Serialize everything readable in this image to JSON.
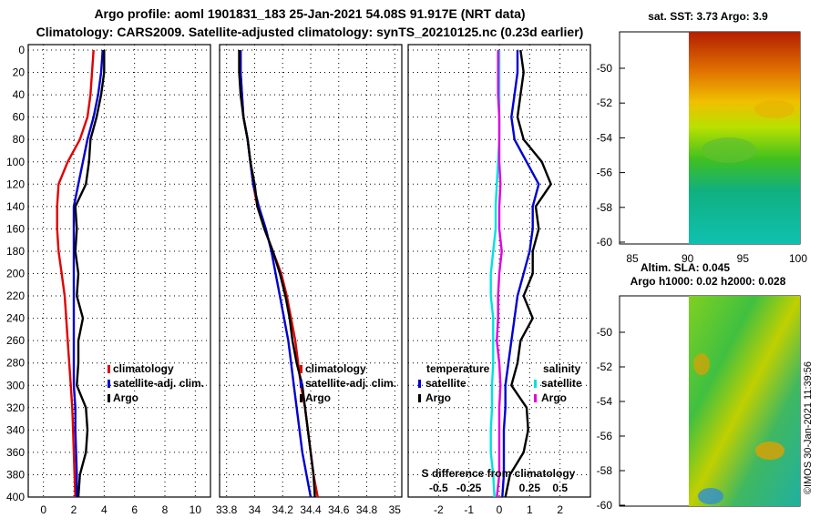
{
  "title": {
    "line1": "Argo profile: aoml 1901831_183 25-Jan-2021 54.08S 91.917E (NRT data)",
    "line2": "Climatology: CARS2009. Satellite-adjusted climatology: synTS_20210125.nc (0.23d earlier)"
  },
  "colors": {
    "climatology": "#e00000",
    "satellite": "#0000d0",
    "argo": "#000000",
    "sat_salinity": "#00e0e0",
    "argo_salinity": "#e000e0"
  },
  "depth_axis": {
    "ticks": [
      "0",
      "20",
      "40",
      "60",
      "80",
      "100",
      "120",
      "140",
      "160",
      "180",
      "200",
      "220",
      "240",
      "260",
      "280",
      "300",
      "320",
      "340",
      "360",
      "380",
      "400"
    ],
    "range": [
      0,
      400
    ]
  },
  "chart_data": [
    {
      "type": "line",
      "name": "temperature",
      "xlim": [
        -1,
        11
      ],
      "xticks": [
        "0",
        "2",
        "4",
        "6",
        "8",
        "10"
      ],
      "ylim": [
        0,
        400
      ],
      "legend": {
        "climatology": "climatology",
        "satellite": "satellite-adj. clim.",
        "argo": "Argo"
      },
      "series": [
        {
          "name": "climatology",
          "depth": [
            0,
            20,
            40,
            60,
            80,
            100,
            120,
            140,
            160,
            180,
            200,
            220,
            240,
            260,
            280,
            300,
            320,
            340,
            360,
            380,
            400
          ],
          "values": [
            3.3,
            3.2,
            3.1,
            2.9,
            2.4,
            1.6,
            1.0,
            0.9,
            0.9,
            1.0,
            1.2,
            1.4,
            1.5,
            1.6,
            1.7,
            1.8,
            1.9,
            1.95,
            2.0,
            2.05,
            2.1
          ]
        },
        {
          "name": "satellite",
          "depth": [
            0,
            20,
            40,
            60,
            80,
            100,
            120,
            140,
            160,
            180,
            200,
            220,
            240,
            260,
            280,
            300,
            320,
            340,
            360,
            380,
            400
          ],
          "values": [
            3.9,
            3.8,
            3.6,
            3.3,
            2.9,
            2.6,
            2.3,
            2.0,
            2.0,
            2.0,
            2.0,
            2.0,
            2.0,
            2.0,
            2.0,
            2.0,
            2.1,
            2.1,
            2.15,
            2.2,
            2.2
          ]
        },
        {
          "name": "argo",
          "depth": [
            0,
            20,
            40,
            60,
            80,
            100,
            120,
            140,
            160,
            180,
            200,
            220,
            240,
            260,
            280,
            300,
            320,
            340,
            360,
            380,
            400
          ],
          "values": [
            4.0,
            4.0,
            3.8,
            3.5,
            3.1,
            3.0,
            2.8,
            2.1,
            2.2,
            2.1,
            2.3,
            2.2,
            2.6,
            2.3,
            2.3,
            2.2,
            2.8,
            2.9,
            2.8,
            2.4,
            2.3
          ]
        }
      ]
    },
    {
      "type": "line",
      "name": "salinity",
      "xlim": [
        33.75,
        35.05
      ],
      "xticks": [
        "33.8",
        "34",
        "34.2",
        "34.4",
        "34.6",
        "34.8",
        "35"
      ],
      "ylim": [
        0,
        400
      ],
      "legend": {
        "climatology": "climatology",
        "satellite": "satellite-adj. clim.",
        "argo": "Argo"
      },
      "series": [
        {
          "name": "climatology",
          "depth": [
            0,
            20,
            40,
            60,
            80,
            100,
            120,
            140,
            160,
            180,
            200,
            220,
            240,
            260,
            280,
            300,
            320,
            340,
            360,
            380,
            400
          ],
          "values": [
            33.9,
            33.9,
            33.91,
            33.92,
            33.95,
            33.97,
            33.99,
            34.02,
            34.07,
            34.13,
            34.19,
            34.23,
            34.26,
            34.29,
            34.31,
            34.33,
            34.36,
            34.38,
            34.4,
            34.42,
            34.45
          ]
        },
        {
          "name": "satellite",
          "depth": [
            0,
            20,
            40,
            60,
            80,
            100,
            120,
            140,
            160,
            180,
            200,
            220,
            240,
            260,
            280,
            300,
            320,
            340,
            360,
            380,
            400
          ],
          "values": [
            33.9,
            33.9,
            33.91,
            33.92,
            33.95,
            33.97,
            33.99,
            34.03,
            34.08,
            34.12,
            34.15,
            34.18,
            34.21,
            34.24,
            34.26,
            34.28,
            34.3,
            34.32,
            34.34,
            34.37,
            34.4
          ]
        },
        {
          "name": "argo",
          "depth": [
            0,
            20,
            40,
            60,
            80,
            100,
            120,
            140,
            160,
            180,
            200,
            220,
            240,
            260,
            280,
            300,
            320,
            340,
            360,
            380,
            400
          ],
          "values": [
            33.89,
            33.89,
            33.9,
            33.92,
            33.95,
            33.97,
            34.0,
            34.02,
            34.07,
            34.13,
            34.18,
            34.22,
            34.25,
            34.27,
            34.3,
            34.34,
            34.36,
            34.38,
            34.4,
            34.42,
            34.43
          ]
        }
      ]
    },
    {
      "type": "line",
      "name": "difference from climatology",
      "xlim": [
        -3,
        3
      ],
      "xticks": [
        "-2",
        "-1",
        "0",
        "1",
        "2"
      ],
      "ylim": [
        0,
        400
      ],
      "legend": {
        "temperature": "temperature",
        "salinity": "salinity",
        "t_satellite": "satellite",
        "t_argo": "Argo",
        "s_satellite": "satellite",
        "s_argo": "Argo",
        "s_caption": "S difference from climatology",
        "s_ticks": [
          "-0.5",
          "-0.25",
          "0.25",
          "0.5"
        ]
      },
      "series": [
        {
          "name": "T satellite",
          "depth": [
            0,
            20,
            40,
            60,
            80,
            100,
            120,
            140,
            160,
            180,
            200,
            220,
            240,
            260,
            280,
            300,
            320,
            340,
            360,
            380,
            400
          ],
          "values": [
            0.6,
            0.6,
            0.5,
            0.4,
            0.5,
            0.9,
            1.3,
            1.1,
            1.1,
            1.0,
            0.8,
            0.6,
            0.5,
            0.4,
            0.3,
            0.2,
            0.2,
            0.15,
            0.15,
            0.15,
            0.1
          ]
        },
        {
          "name": "T Argo",
          "depth": [
            0,
            20,
            40,
            60,
            80,
            100,
            120,
            140,
            160,
            180,
            200,
            220,
            240,
            260,
            280,
            300,
            320,
            340,
            360,
            380,
            400
          ],
          "values": [
            0.7,
            0.8,
            0.7,
            0.6,
            0.8,
            1.4,
            1.7,
            1.2,
            1.3,
            1.1,
            1.1,
            0.8,
            1.1,
            0.7,
            0.6,
            0.4,
            0.9,
            0.95,
            0.8,
            0.35,
            0.2
          ]
        },
        {
          "name": "S satellite",
          "depth": [
            0,
            20,
            40,
            60,
            80,
            100,
            120,
            140,
            160,
            180,
            200,
            220,
            240,
            260,
            280,
            300,
            320,
            340,
            360,
            380,
            400
          ],
          "values": [
            0.0,
            0.0,
            0.0,
            0.0,
            0.0,
            -0.01,
            -0.02,
            -0.03,
            -0.03,
            -0.05,
            -0.07,
            -0.07,
            -0.05,
            -0.05,
            -0.05,
            -0.06,
            -0.06,
            -0.07,
            -0.07,
            -0.05,
            -0.04
          ]
        },
        {
          "name": "S Argo",
          "depth": [
            0,
            20,
            40,
            60,
            80,
            100,
            120,
            140,
            160,
            180,
            200,
            220,
            240,
            260,
            280,
            300,
            320,
            340,
            360,
            380,
            400
          ],
          "values": [
            -0.01,
            -0.01,
            -0.01,
            0.0,
            0.0,
            0.0,
            0.01,
            0.0,
            0.0,
            0.02,
            0.0,
            -0.01,
            -0.01,
            -0.02,
            0.0,
            0.01,
            0.0,
            0.0,
            0.0,
            0.0,
            -0.02
          ]
        }
      ]
    }
  ],
  "maps": {
    "top": {
      "title": "sat. SST: 3.73 Argo: 3.9",
      "yticks": [
        "-50",
        "-52",
        "-54",
        "-56",
        "-58",
        "-60"
      ],
      "xticks": [
        "85",
        "90",
        "95",
        "100"
      ]
    },
    "bottom": {
      "title_line1": "Altim. SLA: 0.045",
      "title_line2": "Argo h1000: 0.02 h2000: 0.028",
      "yticks": [
        "-50",
        "-52",
        "-54",
        "-56",
        "-58",
        "-60"
      ]
    },
    "credit": "©IMOS 30-Jan-2021 11:39:56"
  }
}
